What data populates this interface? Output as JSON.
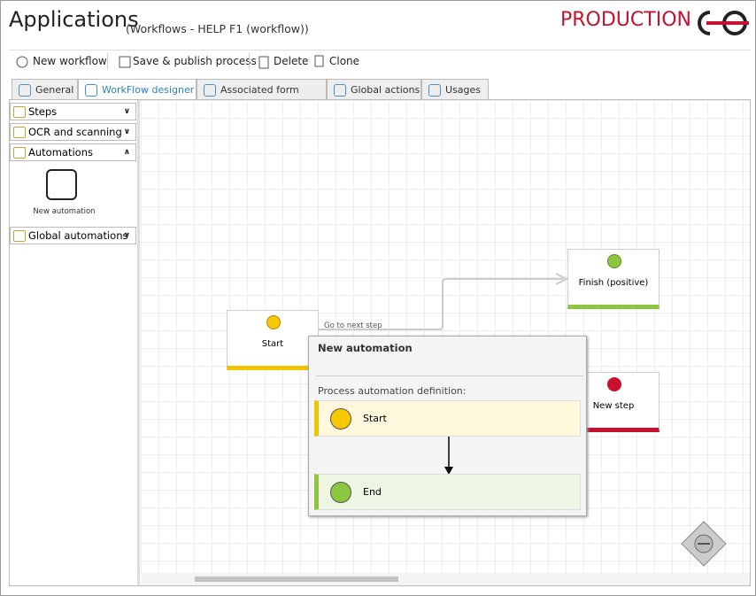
{
  "header": {
    "title": "Applications",
    "subtitle": "(Workflows - HELP F1 (workflow))",
    "environment": "PRODUCTION"
  },
  "toolbar": {
    "buttons": [
      "New workflow",
      "Save & publish process",
      "Delete",
      "Clone"
    ]
  },
  "tabs": [
    "General",
    "WorkFlow designer",
    "Associated form types",
    "Global actions",
    "Usages"
  ],
  "sidebar": {
    "sections": [
      "Steps",
      "OCR and scanning",
      "Automations",
      "Global automations"
    ],
    "items": [
      "New automation"
    ]
  },
  "canvas": {
    "nodes": [
      "Start",
      "Finish (positive)",
      "New step"
    ],
    "edge_label": "Go to next step"
  },
  "popup": {
    "title": "New automation",
    "label": "Process automation definition:",
    "steps": [
      "Start",
      "End"
    ]
  }
}
